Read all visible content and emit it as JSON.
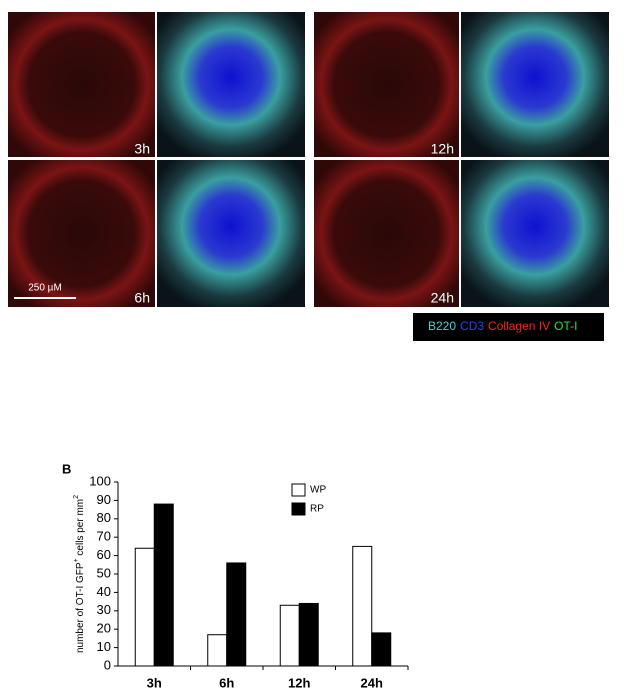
{
  "figure": {
    "panel_labels": [
      "3h",
      "12h",
      "6h",
      "24h"
    ],
    "scale_bar": "250 µM",
    "stain_legend": [
      {
        "text": "B220",
        "color": "#3fd3d3"
      },
      {
        "text": "CD3",
        "color": "#2040ff"
      },
      {
        "text": "Collagen IV",
        "color": "#ff2020"
      },
      {
        "text": "OT-I",
        "color": "#30e030"
      }
    ]
  },
  "chart_data": {
    "type": "bar",
    "panel_label": "B",
    "ylabel": [
      "number of OT-I GFP",
      "+",
      " cells per mm",
      "2"
    ],
    "categories": [
      "3h",
      "6h",
      "12h",
      "24h"
    ],
    "series": [
      {
        "name": "WP",
        "color": "#ffffff",
        "values": [
          64,
          17,
          33,
          65
        ]
      },
      {
        "name": "RP",
        "color": "#000000",
        "values": [
          88,
          56,
          34,
          18
        ]
      }
    ],
    "ylim": [
      0,
      100
    ],
    "yticks": [
      0,
      10,
      20,
      30,
      40,
      50,
      60,
      70,
      80,
      90,
      100
    ],
    "grid": false,
    "legend": "top-right"
  }
}
